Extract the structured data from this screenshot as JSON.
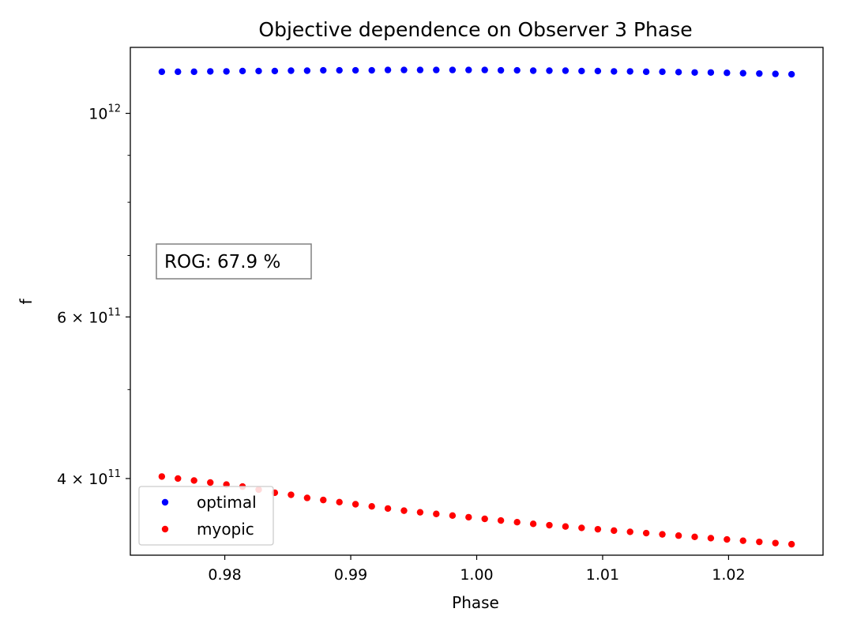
{
  "chart_data": {
    "type": "scatter",
    "title": "Objective dependence on Observer 3 Phase",
    "xlabel": "Phase",
    "ylabel": "f",
    "xlim": [
      0.9725,
      1.0275
    ],
    "ylim": [
      330000000000,
      1180000000000
    ],
    "yscale": "log",
    "x_ticks": [
      {
        "value": 0.98,
        "label": "0.98"
      },
      {
        "value": 0.99,
        "label": "0.99"
      },
      {
        "value": 1.0,
        "label": "1.00"
      },
      {
        "value": 1.01,
        "label": "1.01"
      },
      {
        "value": 1.02,
        "label": "1.02"
      }
    ],
    "y_major_ticks": [
      {
        "value": 1000000000000,
        "mantissa": "",
        "base": "10",
        "exponent": "12"
      },
      {
        "value": 600000000000,
        "mantissa": "6 × ",
        "base": "10",
        "exponent": "11"
      },
      {
        "value": 400000000000,
        "mantissa": "4 × ",
        "base": "10",
        "exponent": "11"
      }
    ],
    "y_minor_ticks": [
      500000000000,
      700000000000,
      800000000000,
      900000000000
    ],
    "x": [
      0.975,
      0.97628,
      0.97756,
      0.97885,
      0.98013,
      0.98141,
      0.98269,
      0.98397,
      0.98526,
      0.98654,
      0.98782,
      0.9891,
      0.99038,
      0.99167,
      0.99295,
      0.99423,
      0.99551,
      0.99679,
      0.99808,
      0.99936,
      1.00064,
      1.00192,
      1.00321,
      1.00449,
      1.00577,
      1.00705,
      1.00833,
      1.00962,
      1.0109,
      1.01218,
      1.01346,
      1.01474,
      1.01603,
      1.01731,
      1.01859,
      1.01987,
      1.02115,
      1.02244,
      1.02372,
      1.025
    ],
    "series": [
      {
        "name": "optimal",
        "color": "#0000ff",
        "values": [
          1110000000000,
          1110000000000,
          1110000000000,
          1111000000000,
          1111000000000,
          1112000000000,
          1112000000000,
          1112000000000,
          1113000000000,
          1113000000000,
          1114000000000,
          1114000000000,
          1114000000000,
          1114000000000,
          1115000000000,
          1115000000000,
          1115000000000,
          1115000000000,
          1115000000000,
          1115000000000,
          1115000000000,
          1114000000000,
          1114000000000,
          1113000000000,
          1113000000000,
          1113000000000,
          1112000000000,
          1112000000000,
          1111000000000,
          1111000000000,
          1110000000000,
          1110000000000,
          1109000000000,
          1108000000000,
          1108000000000,
          1107000000000,
          1106000000000,
          1105000000000,
          1104000000000,
          1103000000000
        ]
      },
      {
        "name": "myopic",
        "color": "#ff0000",
        "values": [
          402000000000,
          400000000000,
          398000000000,
          396000000000,
          394000000000,
          392000000000,
          389000000000,
          386000000000,
          384000000000,
          381000000000,
          379000000000,
          377000000000,
          375000000000,
          373000000000,
          371000000000,
          369000000000,
          367500000000,
          366000000000,
          364500000000,
          363000000000,
          361500000000,
          360000000000,
          358500000000,
          357000000000,
          355800000000,
          354600000000,
          353400000000,
          352200000000,
          351000000000,
          349900000000,
          348800000000,
          347700000000,
          346600000000,
          345500000000,
          344400000000,
          343300000000,
          342200000000,
          341200000000,
          340200000000,
          339200000000
        ]
      }
    ],
    "legend": {
      "location": "lower-left",
      "entries": [
        "optimal",
        "myopic"
      ]
    },
    "annotation": {
      "text": "ROG: 67.9 %"
    },
    "grid": false
  }
}
